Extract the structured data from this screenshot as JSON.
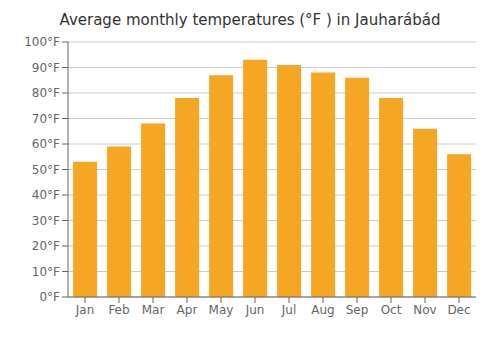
{
  "chart_data": {
    "type": "bar",
    "title": "Average monthly temperatures (°F ) in Jauharábád",
    "categories": [
      "Jan",
      "Feb",
      "Mar",
      "Apr",
      "May",
      "Jun",
      "Jul",
      "Aug",
      "Sep",
      "Oct",
      "Nov",
      "Dec"
    ],
    "values": [
      53,
      59,
      68,
      78,
      87,
      93,
      91,
      88,
      86,
      78,
      66,
      56
    ],
    "color": "#F5A623",
    "ylim": [
      0,
      100
    ],
    "yticks": [
      {
        "value": 0,
        "label": "0°F"
      },
      {
        "value": 10,
        "label": "10°F"
      },
      {
        "value": 20,
        "label": "20°F"
      },
      {
        "value": 30,
        "label": "30°F"
      },
      {
        "value": 40,
        "label": "40°F"
      },
      {
        "value": 50,
        "label": "50°F"
      },
      {
        "value": 60,
        "label": "60°F"
      },
      {
        "value": 70,
        "label": "70°F"
      },
      {
        "value": 80,
        "label": "80°F"
      },
      {
        "value": 90,
        "label": "90°F"
      },
      {
        "value": 100,
        "label": "100°F"
      }
    ],
    "grid": true
  }
}
